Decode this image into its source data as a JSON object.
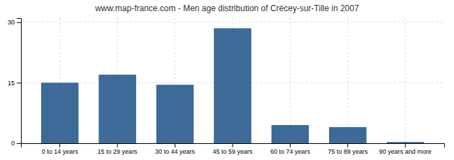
{
  "chart_data": {
    "type": "bar",
    "title": "www.map-france.com - Men age distribution of Crécey-sur-Tille in 2007",
    "categories": [
      "0 to 14 years",
      "15 to 29 years",
      "30 to 44 years",
      "45 to 59 years",
      "60 to 74 years",
      "75 to 89 years",
      "90 years and more"
    ],
    "values": [
      15,
      17,
      14.5,
      28.5,
      4.5,
      4,
      0.3
    ],
    "color": "#3d6a96",
    "ylim": [
      0,
      31
    ],
    "yticks": [
      0,
      15,
      30
    ],
    "grid": true
  }
}
